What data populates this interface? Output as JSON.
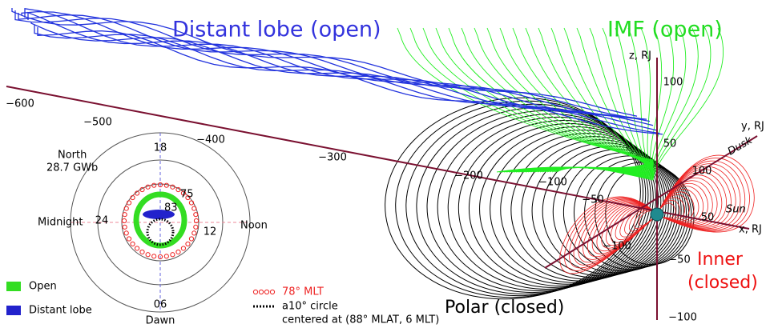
{
  "regions": {
    "distant_lobe": "Distant lobe (open)",
    "imf": "IMF (open)",
    "inner": [
      "Inner",
      "(closed)"
    ],
    "polar": "Polar (closed)"
  },
  "directions": {
    "sun": "Sun",
    "dusk": "Dusk"
  },
  "axes": {
    "x": {
      "label": "x, RJ",
      "ticks": [
        "−600",
        "−500",
        "−400",
        "−300",
        "−200",
        "−100",
        "−50",
        "50"
      ]
    },
    "y": {
      "label": "y, RJ",
      "ticks": [
        "100",
        "50",
        "−100"
      ]
    },
    "z": {
      "label": "z, RJ",
      "ticks": [
        "100",
        "50",
        "−50",
        "−100"
      ]
    }
  },
  "inset": {
    "hemisphere": "North",
    "flux": "28.7 GWb",
    "mlt": [
      "18",
      "06",
      "24",
      "12"
    ],
    "sides": [
      "Midnight",
      "Noon",
      "Dawn"
    ],
    "latitudes": [
      "75",
      "83"
    ]
  },
  "legend": [
    {
      "label": "Open",
      "color": "#33dd22"
    },
    {
      "label": "Distant lobe",
      "color": "#2222cc"
    }
  ],
  "notes": [
    "78° MLT",
    "a10° circle",
    "centered at (88° MLAT, 6 MLT)"
  ]
}
